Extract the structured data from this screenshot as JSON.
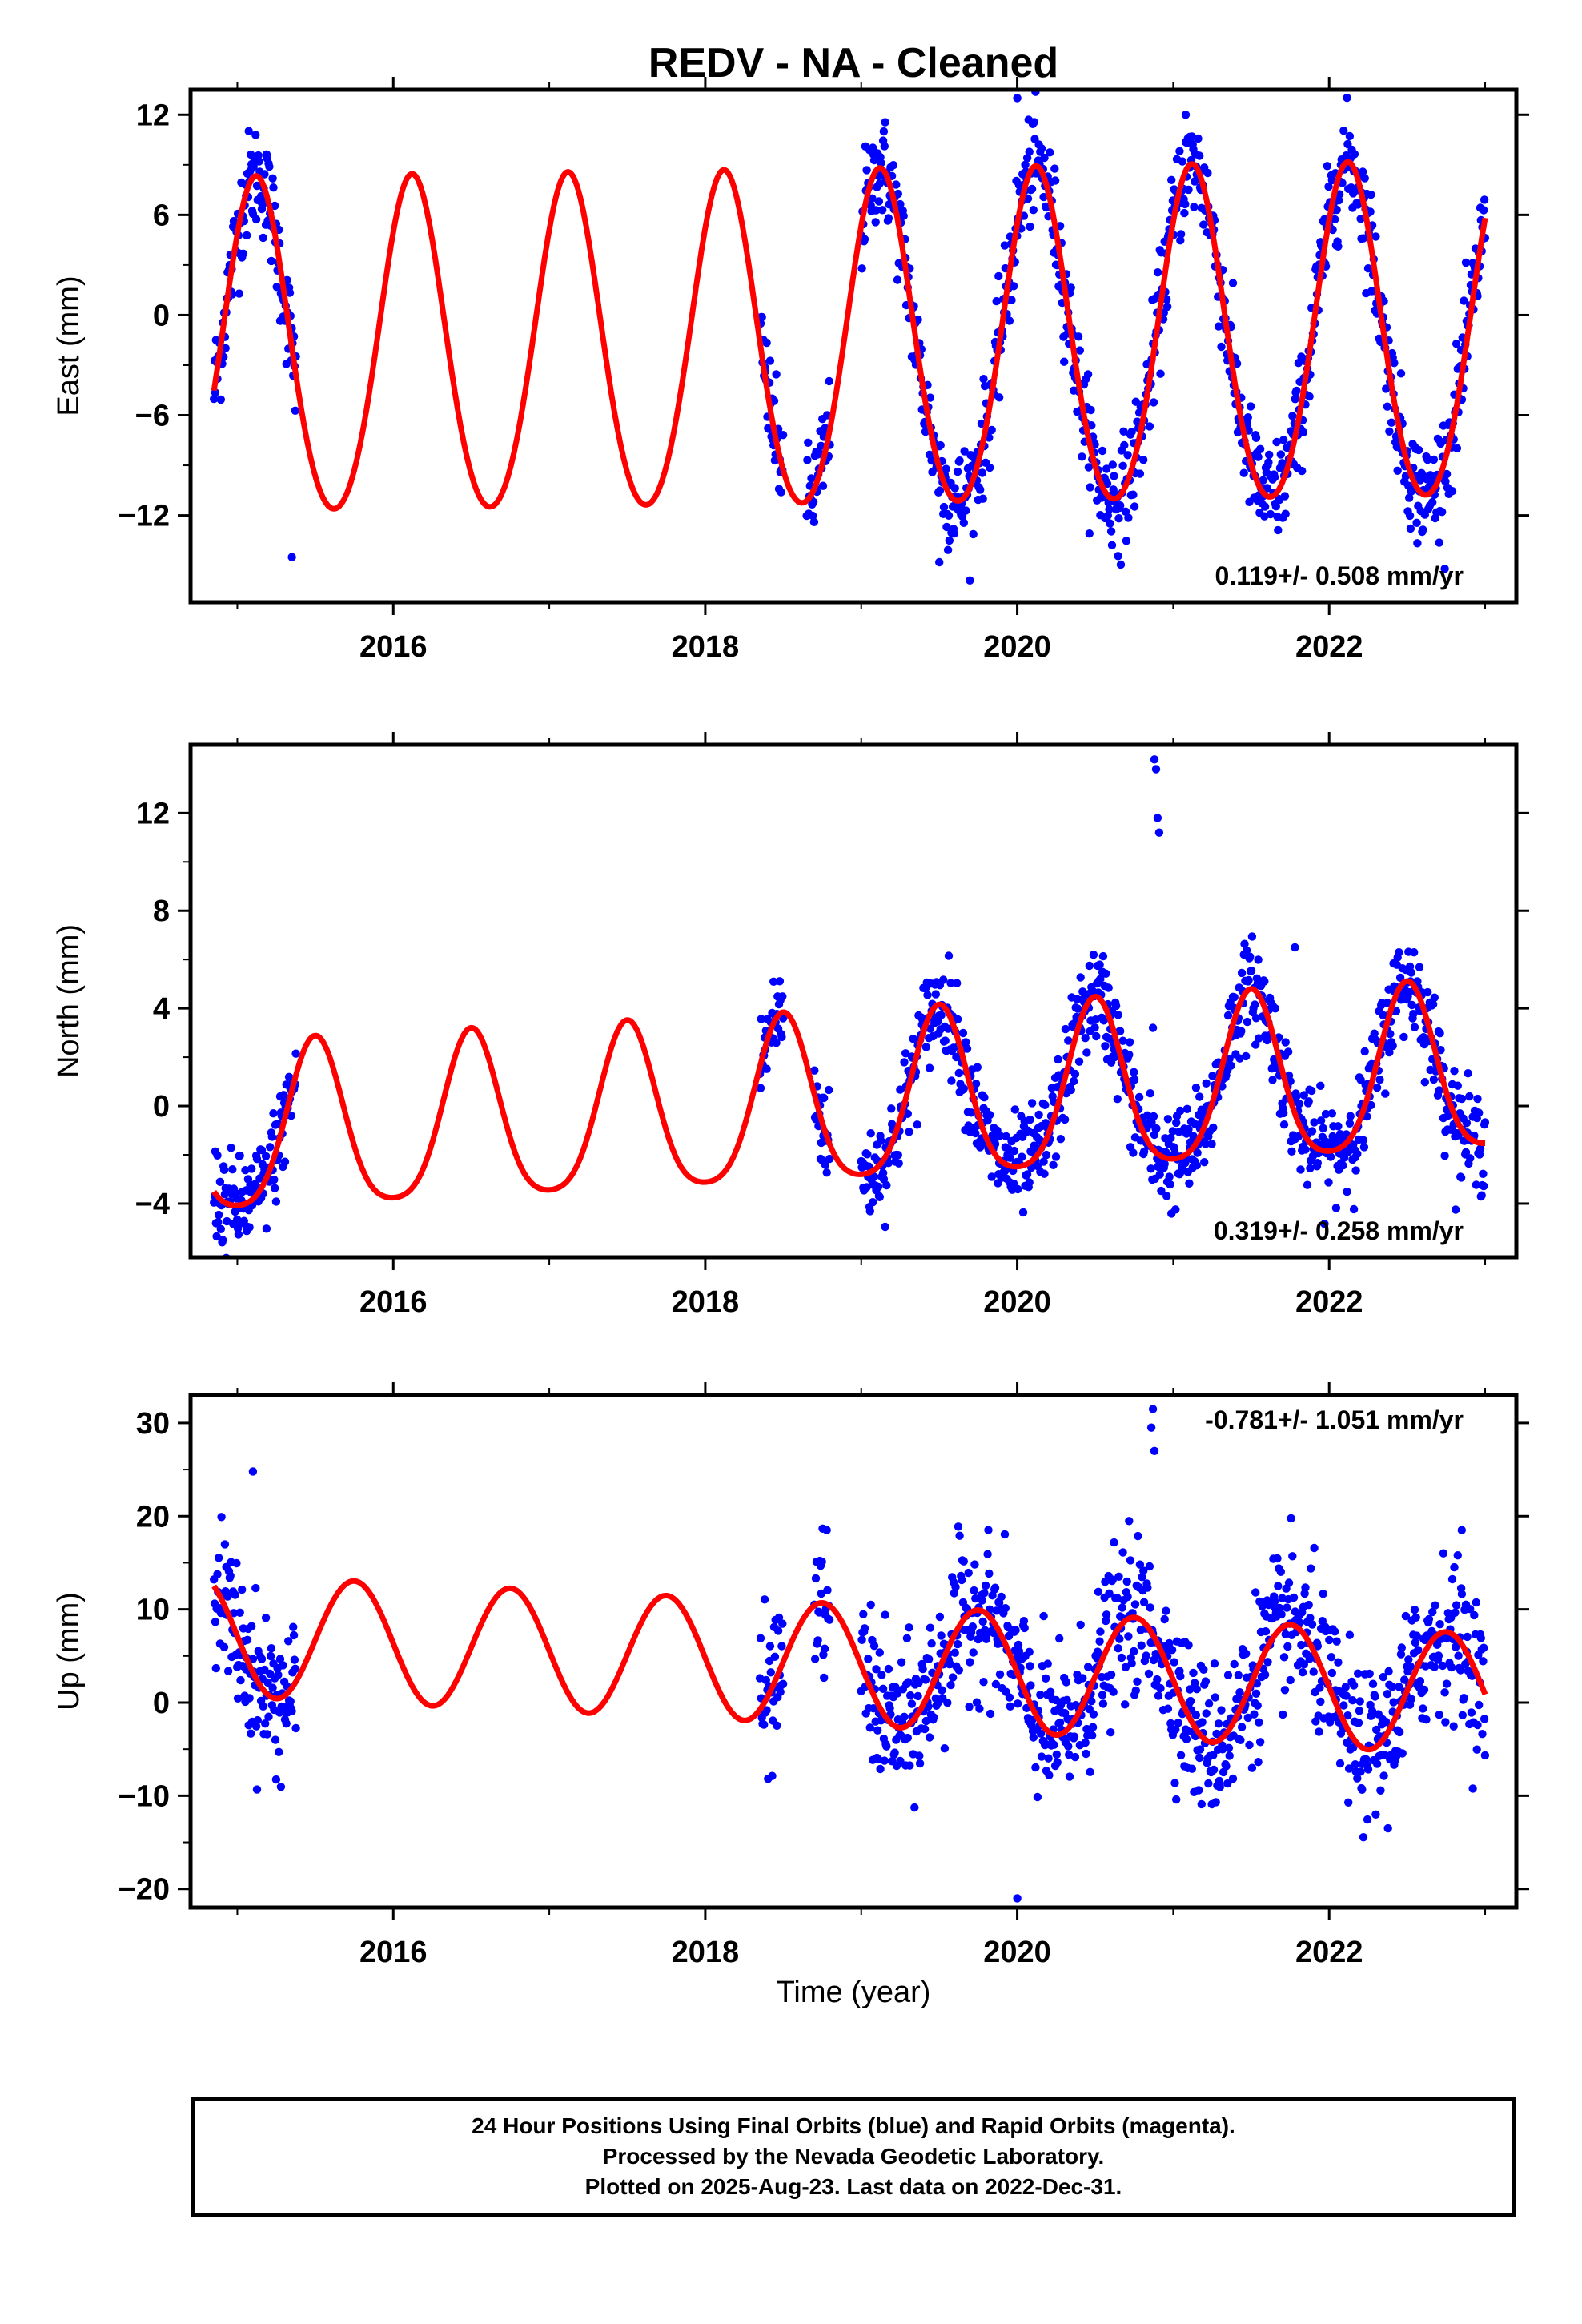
{
  "title": "REDV  - NA - Cleaned",
  "xlabel": "Time (year)",
  "colors": {
    "data": "#0000ff",
    "model": "#ff0000",
    "axis": "#000000"
  },
  "chart_data": [
    {
      "type": "scatter",
      "component": "east",
      "ylabel": "East (mm)",
      "xlim": [
        2014.7,
        2023.2
      ],
      "ylim": [
        -17.2,
        13.5
      ],
      "yticks": [
        -12,
        -6,
        0,
        6,
        12
      ],
      "ytick_labels": [
        "−12",
        "−6",
        "0",
        "6",
        "12"
      ],
      "xticks": [
        2016,
        2018,
        2020,
        2022
      ],
      "xtick_labels": [
        "2016",
        "2018",
        "2020",
        "2022"
      ],
      "rate_text": "0.119+/- 0.508 mm/yr",
      "rate_position": "bottom-right",
      "model": {
        "offset": -2.0,
        "trend": 0.119,
        "amplitude": 10.0,
        "phase_year": 0.12,
        "semi_amplitude": 0.8
      },
      "segments": [
        [
          2014.85,
          2015.38
        ],
        [
          2018.35,
          2018.5
        ],
        [
          2018.65,
          2018.8
        ],
        [
          2019.0,
          2023.0
        ]
      ],
      "noise": 1.6,
      "outliers": [
        [
          2015.35,
          -14.5
        ],
        [
          2019.5,
          -14.8
        ],
        [
          2020.0,
          13.0
        ],
        [
          2021.08,
          12.0
        ]
      ]
    },
    {
      "type": "scatter",
      "component": "north",
      "ylabel": "North (mm)",
      "xlim": [
        2014.7,
        2023.2
      ],
      "ylim": [
        -6.2,
        14.8
      ],
      "yticks": [
        -4,
        0,
        4,
        8,
        12
      ],
      "ytick_labels": [
        "−4",
        "0",
        "4",
        "8",
        "12"
      ],
      "xticks": [
        2016,
        2018,
        2020,
        2022
      ],
      "xtick_labels": [
        "2016",
        "2018",
        "2020",
        "2022"
      ],
      "rate_text": "0.319+/- 0.258 mm/yr",
      "rate_position": "bottom-right",
      "model": {
        "offset": 0.0,
        "trend": 0.319,
        "amplitude": 3.4,
        "phase_year": 0.5,
        "semi_amplitude": 0.6
      },
      "segments": [
        [
          2014.85,
          2015.38
        ],
        [
          2018.35,
          2018.5
        ],
        [
          2018.7,
          2018.8
        ],
        [
          2019.0,
          2023.0
        ]
      ],
      "noise": 1.0,
      "outliers": [
        [
          2020.88,
          14.2
        ],
        [
          2020.89,
          13.8
        ],
        [
          2020.9,
          11.8
        ],
        [
          2020.91,
          11.2
        ],
        [
          2020.87,
          3.2
        ],
        [
          2021.78,
          6.5
        ]
      ]
    },
    {
      "type": "scatter",
      "component": "up",
      "ylabel": "Up (mm)",
      "xlim": [
        2014.7,
        2023.2
      ],
      "ylim": [
        -22,
        33
      ],
      "yticks": [
        -20,
        -10,
        0,
        10,
        20,
        30
      ],
      "ytick_labels": [
        "−20",
        "−10",
        "0",
        "10",
        "20",
        "30"
      ],
      "xticks": [
        2016,
        2018,
        2020,
        2022
      ],
      "xtick_labels": [
        "2016",
        "2018",
        "2020",
        "2022"
      ],
      "rate_text": "-0.781+/- 1.051 mm/yr",
      "rate_position": "top-right",
      "model": {
        "offset": 4.0,
        "trend": -0.781,
        "amplitude": 6.5,
        "phase_year": 0.75,
        "semi_amplitude": 0.0
      },
      "segments": [
        [
          2014.85,
          2015.38
        ],
        [
          2018.35,
          2018.5
        ],
        [
          2018.7,
          2018.8
        ],
        [
          2019.0,
          2023.0
        ]
      ],
      "noise": 4.0,
      "outliers": [
        [
          2015.1,
          24.8
        ],
        [
          2020.87,
          31.5
        ],
        [
          2020.86,
          29.5
        ],
        [
          2020.88,
          27.0
        ],
        [
          2020.0,
          -21.0
        ],
        [
          2022.85,
          18.5
        ]
      ]
    }
  ],
  "footer": {
    "line1": "24 Hour Positions Using Final Orbits (blue) and Rapid Orbits (magenta).",
    "line2": "Processed by the Nevada Geodetic Laboratory.",
    "line3": "Plotted on 2025-Aug-23. Last data on 2022-Dec-31."
  }
}
